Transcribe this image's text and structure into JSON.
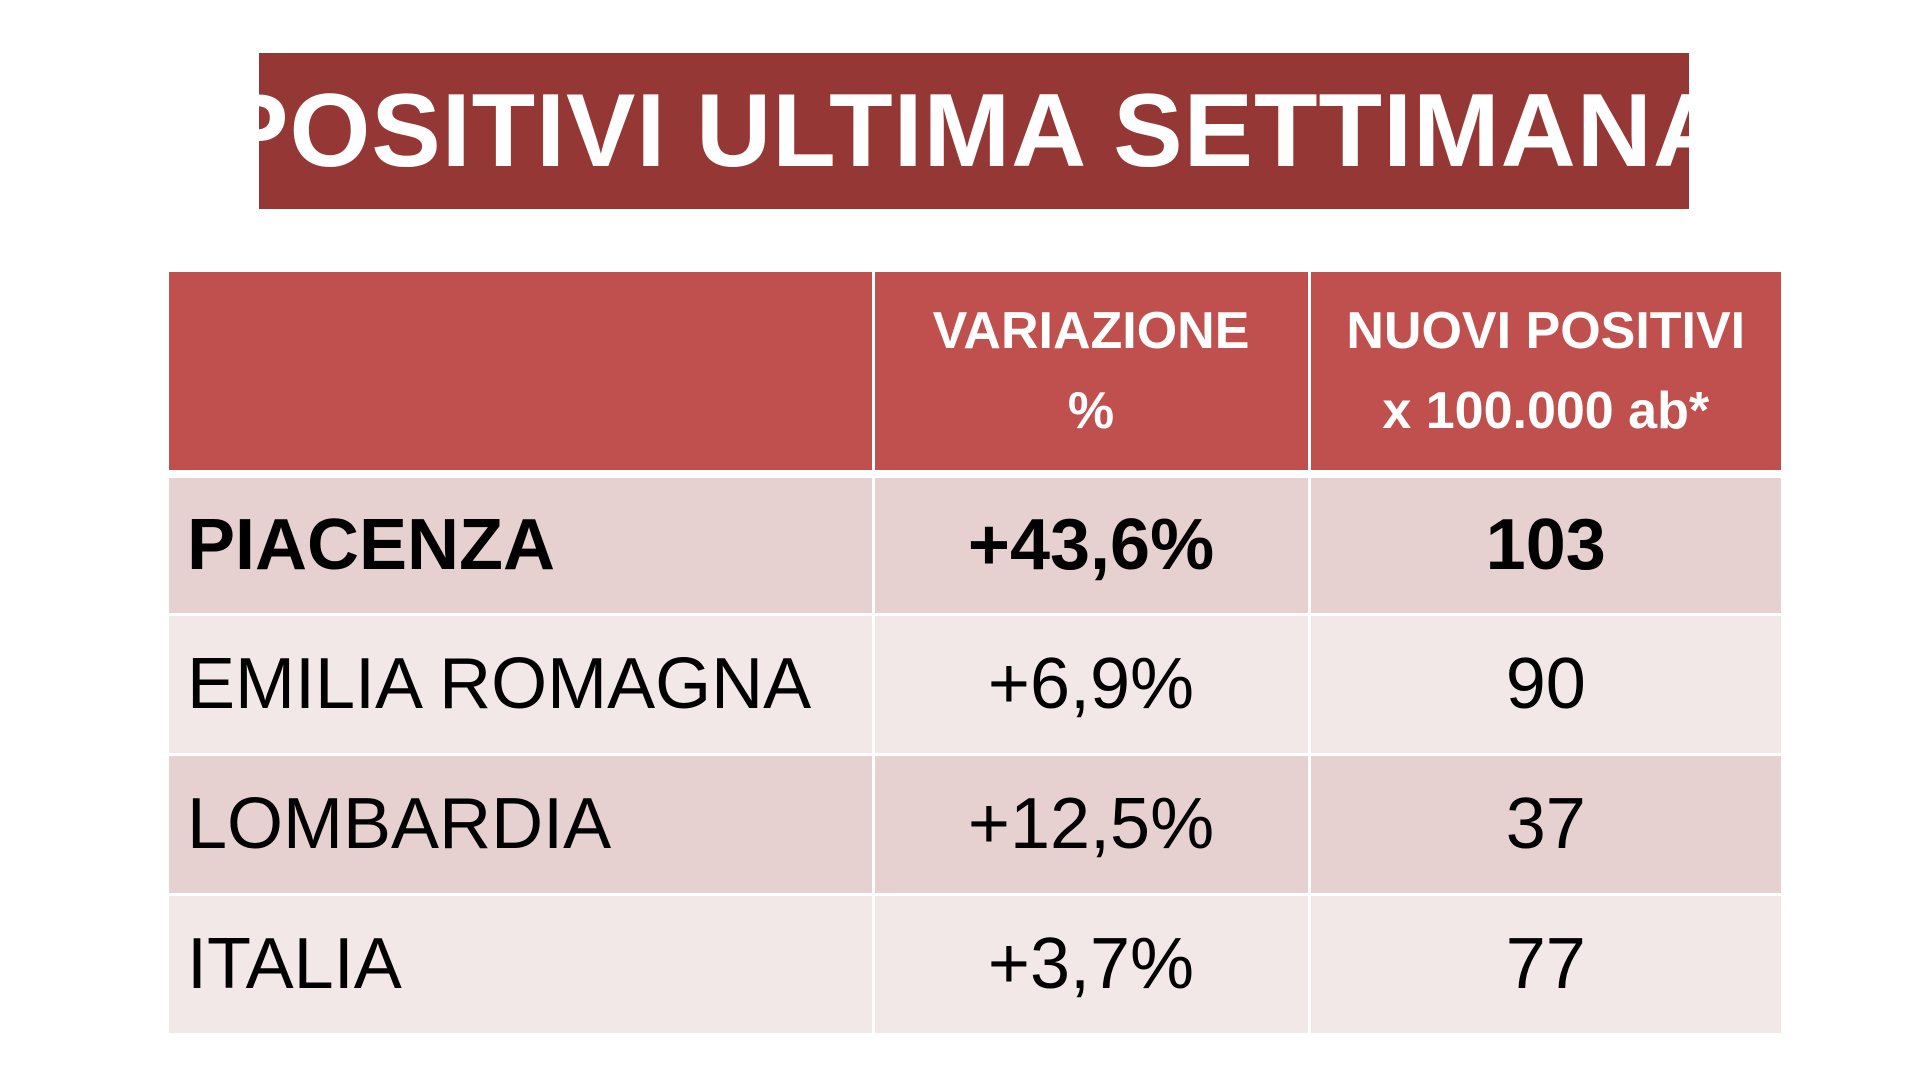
{
  "title": "POSITIVI ULTIMA SETTIMANA",
  "colors": {
    "title_background": "#953735",
    "header_background": "#c0504d",
    "row_dark": "#e6d0d0",
    "row_light": "#f3e8e8"
  },
  "chart_data": {
    "type": "table",
    "title": "POSITIVI ULTIMA SETTIMANA",
    "columns": [
      {
        "lines": [
          ""
        ]
      },
      {
        "lines": [
          "VARIAZIONE",
          "%"
        ]
      },
      {
        "lines": [
          "NUOVI POSITIVI",
          "x 100.000 ab*"
        ]
      }
    ],
    "rows": [
      {
        "name": "PIACENZA",
        "variazione": "+43,6%",
        "nuovi_positivi": "103",
        "bold": true
      },
      {
        "name": "EMILIA ROMAGNA",
        "variazione": "+6,9%",
        "nuovi_positivi": "90",
        "bold": false
      },
      {
        "name": "LOMBARDIA",
        "variazione": "+12,5%",
        "nuovi_positivi": "37",
        "bold": false
      },
      {
        "name": "ITALIA",
        "variazione": "+3,7%",
        "nuovi_positivi": "77",
        "bold": false
      }
    ]
  }
}
